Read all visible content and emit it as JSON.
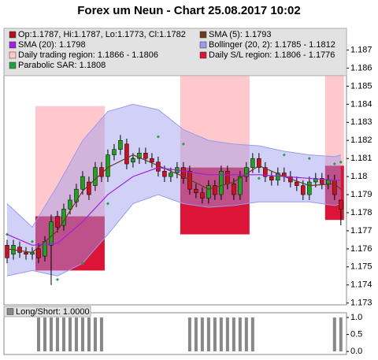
{
  "chart_data": {
    "type": "candlestick",
    "title": "Forex um Neun - Chart 25.08.2017 10:02",
    "xlim": [
      -0.5,
      53.9
    ],
    "ylim": [
      1.1729,
      1.1882
    ],
    "yticks": [
      1.173,
      1.174,
      1.175,
      1.176,
      1.177,
      1.178,
      1.179,
      1.18,
      1.181,
      1.182,
      1.183,
      1.184,
      1.185,
      1.186,
      1.187
    ],
    "regions": {
      "trading_name": "Daily trading region: 1.1866 - 1.1806",
      "trading_color": "#ffc8cc",
      "sl_name": "Daily S/L region: 1.1806 - 1.1776",
      "sl_color": "#dc1438",
      "items": [
        {
          "x": [
            4.5,
            15.5
          ],
          "trading": [
            1.1839,
            1.1778
          ],
          "sl": [
            1.1778,
            1.1748
          ]
        },
        {
          "x": [
            27.5,
            38.5
          ],
          "trading": [
            1.186,
            1.1805
          ],
          "sl": [
            1.1805,
            1.1768
          ]
        },
        {
          "x": [
            50.5,
            53.5
          ],
          "trading": [
            1.1866,
            1.1806
          ],
          "sl": [
            1.1806,
            1.1776
          ]
        }
      ]
    },
    "band": {
      "name": "Bollinger (20, 2): 1.1785 - 1.1812",
      "color": "#9a9af0",
      "x": [
        0,
        4,
        8,
        12,
        16,
        20,
        24,
        28,
        32,
        36,
        40,
        44,
        48,
        52,
        53
      ],
      "upper": [
        1.1785,
        1.1772,
        1.1795,
        1.182,
        1.1836,
        1.184,
        1.1837,
        1.1826,
        1.182,
        1.1818,
        1.1817,
        1.1814,
        1.1812,
        1.1811,
        1.1812
      ],
      "lower": [
        1.1745,
        1.1748,
        1.1745,
        1.1752,
        1.1768,
        1.1785,
        1.179,
        1.1785,
        1.1783,
        1.1784,
        1.1786,
        1.1786,
        1.1786,
        1.1784,
        1.1785
      ]
    },
    "lines": [
      {
        "name": "SMA (5): 1.1793",
        "color": "#6b3a1f",
        "x": [
          0,
          4,
          8,
          12,
          16,
          20,
          24,
          28,
          32,
          36,
          40,
          44,
          48,
          52,
          53
        ],
        "values": [
          1.176,
          1.1758,
          1.177,
          1.1792,
          1.1805,
          1.1812,
          1.1806,
          1.18,
          1.1793,
          1.1797,
          1.1806,
          1.18,
          1.1795,
          1.1796,
          1.1793
        ]
      },
      {
        "name": "SMA (20): 1.1798",
        "color": "#a020e0",
        "x": [
          0,
          4,
          8,
          12,
          16,
          20,
          24,
          28,
          32,
          36,
          40,
          44,
          48,
          52,
          53
        ],
        "values": [
          1.1768,
          1.1762,
          1.1763,
          1.1775,
          1.179,
          1.18,
          1.1805,
          1.1803,
          1.1801,
          1.1801,
          1.1801,
          1.18,
          1.1799,
          1.1798,
          1.1798
        ]
      }
    ],
    "sar": {
      "name": "Parabolic SAR: 1.1808",
      "color": "#20a040",
      "x": [
        0,
        4,
        8,
        12,
        16,
        20,
        24,
        28,
        32,
        36,
        40,
        44,
        48,
        52,
        53
      ],
      "values": [
        1.1768,
        1.1764,
        1.1743,
        1.1752,
        1.1785,
        1.181,
        1.1822,
        1.1818,
        1.179,
        1.1795,
        1.1799,
        1.1812,
        1.181,
        1.1807,
        1.1808
      ]
    },
    "candles": {
      "name": "Op:1.1787, Hi:1.1787, Lo:1.1773, Cl:1.1782",
      "color": "#b01020",
      "color_up": "#22a022",
      "color_down": "#cc1020",
      "open": [
        1.1762,
        1.1757,
        1.1761,
        1.1758,
        1.1757,
        1.176,
        1.1756,
        1.1762,
        1.1778,
        1.1773,
        1.1782,
        1.1786,
        1.1793,
        1.1797,
        1.1795,
        1.1805,
        1.18,
        1.1812,
        1.1815,
        1.1818,
        1.1808,
        1.181,
        1.1813,
        1.181,
        1.1808,
        1.1803,
        1.18,
        1.1802,
        1.1805,
        1.1803,
        1.1793,
        1.1791,
        1.1788,
        1.1795,
        1.179,
        1.1803,
        1.1796,
        1.179,
        1.18,
        1.1805,
        1.181,
        1.1805,
        1.18,
        1.1798,
        1.1802,
        1.18,
        1.1797,
        1.1795,
        1.179,
        1.1797,
        1.1799,
        1.1796,
        1.1798,
        1.1787
      ],
      "high": [
        1.1765,
        1.1765,
        1.1764,
        1.1761,
        1.1761,
        1.1763,
        1.1767,
        1.1779,
        1.1781,
        1.1785,
        1.179,
        1.1796,
        1.1803,
        1.18,
        1.1808,
        1.1808,
        1.1815,
        1.1818,
        1.1823,
        1.1821,
        1.1813,
        1.1816,
        1.1816,
        1.1813,
        1.1811,
        1.1806,
        1.1805,
        1.1808,
        1.1808,
        1.1806,
        1.1796,
        1.1794,
        1.1798,
        1.1798,
        1.1806,
        1.1806,
        1.1799,
        1.1803,
        1.1808,
        1.1813,
        1.1813,
        1.1808,
        1.1803,
        1.1805,
        1.1805,
        1.1803,
        1.18,
        1.1798,
        1.18,
        1.1802,
        1.1802,
        1.1801,
        1.1801,
        1.1787
      ],
      "low": [
        1.1752,
        1.1754,
        1.1755,
        1.1754,
        1.1754,
        1.1752,
        1.1753,
        1.174,
        1.1769,
        1.177,
        1.1779,
        1.1783,
        1.179,
        1.1787,
        1.1792,
        1.1797,
        1.1797,
        1.1809,
        1.1812,
        1.1804,
        1.1805,
        1.1807,
        1.1807,
        1.1805,
        1.18,
        1.1797,
        1.1797,
        1.1799,
        1.1796,
        1.179,
        1.1788,
        1.1785,
        1.1785,
        1.1787,
        1.1787,
        1.1793,
        1.1787,
        1.1787,
        1.1797,
        1.1802,
        1.1802,
        1.1797,
        1.1795,
        1.1795,
        1.1797,
        1.1794,
        1.1792,
        1.1787,
        1.1787,
        1.1794,
        1.1793,
        1.1793,
        1.1787,
        1.1773
      ],
      "close": [
        1.1755,
        1.1762,
        1.1758,
        1.1757,
        1.1758,
        1.1755,
        1.1764,
        1.1775,
        1.1772,
        1.1782,
        1.1787,
        1.1793,
        1.18,
        1.179,
        1.1805,
        1.18,
        1.1812,
        1.1815,
        1.182,
        1.1807,
        1.181,
        1.1813,
        1.181,
        1.1808,
        1.1803,
        1.18,
        1.1802,
        1.1805,
        1.1799,
        1.1793,
        1.1791,
        1.1788,
        1.1795,
        1.179,
        1.1803,
        1.1796,
        1.179,
        1.18,
        1.1805,
        1.181,
        1.1805,
        1.18,
        1.1798,
        1.1802,
        1.18,
        1.1797,
        1.1795,
        1.179,
        1.1797,
        1.1799,
        1.1796,
        1.1798,
        1.179,
        1.1782
      ]
    },
    "lower_panel": {
      "type": "bar",
      "name": "Long/Short: 1.0000",
      "color": "#888888",
      "ylim": [
        -0.09,
        1.14
      ],
      "yticks": [
        {
          "value": 1,
          "label": "1.0"
        },
        {
          "value": 0.5,
          "label": "0.5"
        },
        {
          "value": 0,
          "label": "0.0"
        }
      ],
      "values": [
        0,
        0,
        0,
        0,
        0,
        1,
        1,
        1,
        1,
        1,
        1,
        1,
        1,
        1,
        1,
        1,
        0,
        0,
        0,
        0,
        0,
        0,
        0,
        0,
        0,
        0,
        0,
        0,
        0,
        1,
        1,
        1,
        1,
        1,
        1,
        1,
        1,
        1,
        1,
        1,
        0,
        0,
        0,
        0,
        0,
        0,
        0,
        0,
        0,
        0,
        0,
        0,
        1,
        1
      ]
    }
  }
}
